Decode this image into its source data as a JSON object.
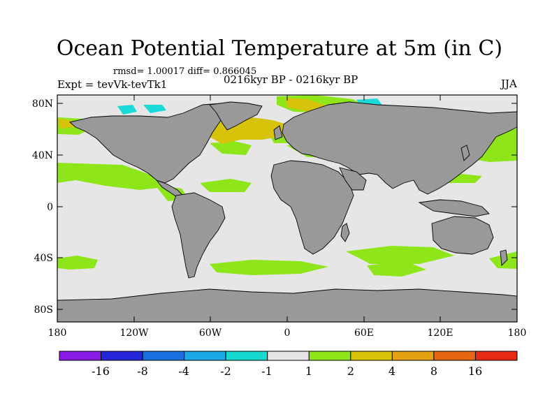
{
  "title": "Ocean Potential Temperature at 5m (in C)",
  "stats_line": "rmsd= 1.00017 diff= 0.866045",
  "experiment": "Expt = tevVk-tevTk1",
  "period": "0216kyr BP - 0216kyr BP",
  "season": "JJA",
  "map": {
    "lat_axis": [
      "80N",
      "40N",
      "0",
      "40S",
      "80S"
    ],
    "lon_axis": [
      "180",
      "120W",
      "60W",
      "0",
      "60E",
      "120E",
      "180"
    ],
    "colors": {
      "land": "#999999",
      "ocean_neutral": "#e6e6e6",
      "warm_1_2": "#8ee51a",
      "warm_2_4": "#d7c30a",
      "cool_neg1_neg2": "#19d9d9"
    }
  },
  "colorbar": {
    "labels": [
      "-16",
      "-8",
      "-4",
      "-2",
      "-1",
      "1",
      "2",
      "4",
      "8",
      "16"
    ],
    "colors": [
      "#8a1ae6",
      "#2626d9",
      "#1a6fe0",
      "#1aa9e6",
      "#17d9d0",
      "#e6e6e6",
      "#8ee51a",
      "#d7c30a",
      "#e6a014",
      "#e66614",
      "#e62a14"
    ]
  }
}
